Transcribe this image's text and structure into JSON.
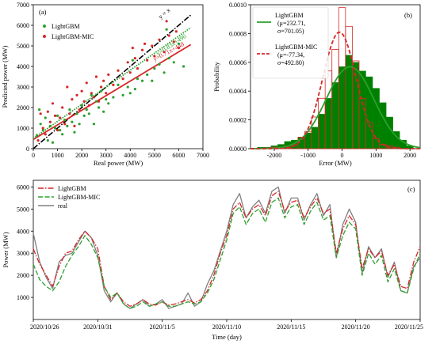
{
  "chart_data": [
    {
      "id": "a",
      "type": "scatter",
      "panel_label": "(a)",
      "xlabel": "Real power (MW)",
      "ylabel": "Predicted power (MW)",
      "xlim": [
        0,
        7000
      ],
      "ylim": [
        0,
        7000
      ],
      "xticks": [
        0,
        1000,
        2000,
        3000,
        4000,
        5000,
        6000,
        7000
      ],
      "yticks": [
        0,
        1000,
        2000,
        3000,
        4000,
        5000,
        6000,
        7000
      ],
      "legend_position": "top-left",
      "grid": false,
      "series": [
        {
          "name": "LightGBM",
          "color": "#2ca02c",
          "points": [
            [
              150,
              650
            ],
            [
              250,
              1900
            ],
            [
              300,
              1200
            ],
            [
              400,
              900
            ],
            [
              500,
              1500
            ],
            [
              600,
              400
            ],
            [
              700,
              1100
            ],
            [
              800,
              300
            ],
            [
              900,
              1000
            ],
            [
              1000,
              1600
            ],
            [
              1100,
              900
            ],
            [
              1200,
              700
            ],
            [
              1300,
              1400
            ],
            [
              1400,
              1100
            ],
            [
              1500,
              1900
            ],
            [
              1600,
              1300
            ],
            [
              1700,
              800
            ],
            [
              1800,
              1700
            ],
            [
              1900,
              1200
            ],
            [
              2000,
              2100
            ],
            [
              2100,
              1600
            ],
            [
              2200,
              1900
            ],
            [
              2300,
              1700
            ],
            [
              2400,
              2600
            ],
            [
              2500,
              1200
            ],
            [
              2600,
              2300
            ],
            [
              2700,
              2000
            ],
            [
              2800,
              2800
            ],
            [
              2900,
              1800
            ],
            [
              3000,
              2400
            ],
            [
              3100,
              2200
            ],
            [
              3300,
              2500
            ],
            [
              3500,
              3100
            ],
            [
              3700,
              2600
            ],
            [
              3900,
              3000
            ],
            [
              4000,
              2700
            ],
            [
              4100,
              4300
            ],
            [
              4200,
              2900
            ],
            [
              4300,
              3400
            ],
            [
              4500,
              3300
            ],
            [
              4700,
              3600
            ],
            [
              4900,
              3300
            ],
            [
              5000,
              3900
            ],
            [
              5200,
              4100
            ],
            [
              5400,
              3700
            ],
            [
              5600,
              4400
            ],
            [
              5800,
              4200
            ],
            [
              6000,
              5100
            ],
            [
              6200,
              4000
            ],
            [
              5500,
              5800
            ]
          ]
        },
        {
          "name": "LightGBM-MIC",
          "color": "#d62728",
          "points": [
            [
              200,
              400
            ],
            [
              300,
              1700
            ],
            [
              400,
              1000
            ],
            [
              500,
              700
            ],
            [
              600,
              1800
            ],
            [
              700,
              1300
            ],
            [
              800,
              2200
            ],
            [
              900,
              1600
            ],
            [
              1000,
              900
            ],
            [
              1100,
              1500
            ],
            [
              1200,
              2000
            ],
            [
              1300,
              1200
            ],
            [
              1400,
              3000
            ],
            [
              1500,
              1700
            ],
            [
              1600,
              2400
            ],
            [
              1700,
              1100
            ],
            [
              1800,
              2600
            ],
            [
              1900,
              1900
            ],
            [
              2000,
              2800
            ],
            [
              2100,
              2300
            ],
            [
              2200,
              3200
            ],
            [
              2300,
              2100
            ],
            [
              2400,
              2700
            ],
            [
              2500,
              2500
            ],
            [
              2600,
              3500
            ],
            [
              2700,
              2300
            ],
            [
              2800,
              3000
            ],
            [
              2900,
              3300
            ],
            [
              3000,
              2700
            ],
            [
              3100,
              3600
            ],
            [
              3300,
              3100
            ],
            [
              3500,
              3800
            ],
            [
              3700,
              3400
            ],
            [
              3900,
              4200
            ],
            [
              4000,
              3700
            ],
            [
              4100,
              4900
            ],
            [
              4200,
              4400
            ],
            [
              4300,
              3900
            ],
            [
              4500,
              4800
            ],
            [
              4700,
              4300
            ],
            [
              4900,
              5000
            ],
            [
              5000,
              4500
            ],
            [
              5200,
              5300
            ],
            [
              5400,
              4700
            ],
            [
              5600,
              5500
            ],
            [
              5800,
              5200
            ],
            [
              5900,
              5700
            ],
            [
              6000,
              4900
            ],
            [
              5500,
              6200
            ],
            [
              4600,
              5100
            ]
          ]
        }
      ],
      "reference_line_label": "y = x",
      "fit_lines": [
        {
          "series": "LightGBM-MIC",
          "equation": "y=0.71x+448",
          "slope": 0.71,
          "intercept": 448,
          "color": "#d62728"
        },
        {
          "series": "LightGBM",
          "equation": "y=0.83x+496",
          "slope": 0.83,
          "intercept": 496,
          "color": "#2ca02c"
        }
      ]
    },
    {
      "id": "b",
      "type": "histogram",
      "panel_label": "(b)",
      "xlabel": "Error (MW)",
      "ylabel": "Probability",
      "xlim": [
        -2700,
        2300
      ],
      "ylim": [
        0,
        0.001
      ],
      "xticks": [
        -2000,
        -1000,
        0,
        1000,
        2000
      ],
      "yticks": [
        0,
        0.0002,
        0.0004,
        0.0006,
        0.0008,
        0.001
      ],
      "ytick_labels": [
        "0.0000",
        "0.0002",
        "0.0004",
        "0.0006",
        "0.0008",
        "0.0010"
      ],
      "legend_position": "top-left",
      "grid": false,
      "bin_edges": [
        -2500,
        -2300,
        -2100,
        -1900,
        -1700,
        -1500,
        -1300,
        -1100,
        -900,
        -700,
        -500,
        -300,
        -100,
        100,
        300,
        500,
        700,
        900,
        1100,
        1300,
        1500,
        1700,
        1900,
        2100
      ],
      "series": [
        {
          "name": "LightGBM",
          "stats_lines": [
            "(μ=232.71,",
            "σ=701.05)"
          ],
          "mu": 232.71,
          "sigma": 701.05,
          "color": "#008000",
          "style": "filled",
          "values": [
            1e-05,
            1e-05,
            2e-05,
            3e-05,
            5e-05,
            6e-05,
            8e-05,
            0.00011,
            0.00015,
            0.00024,
            0.00035,
            0.00046,
            0.00057,
            0.00065,
            0.0006,
            0.00054,
            0.0005,
            0.00042,
            0.00032,
            0.00022,
            0.00012,
            6e-05,
            2e-05
          ]
        },
        {
          "name": "LightGBM-MIC",
          "stats_lines": [
            "(μ=-77.34,",
            "σ=492.80)"
          ],
          "mu": -77.34,
          "sigma": 492.8,
          "color": "#d62728",
          "style": "outline",
          "values": [
            0,
            5e-06,
            1e-05,
            1e-05,
            2e-05,
            3e-05,
            8e-05,
            0.00012,
            0.00022,
            0.00035,
            0.00054,
            0.00069,
            0.00098,
            0.00085,
            0.00061,
            0.00035,
            0.00018,
            7e-05,
            3e-05,
            2e-05,
            1e-05,
            0,
            0
          ]
        }
      ]
    },
    {
      "id": "c",
      "type": "line",
      "panel_label": "(c)",
      "xlabel": "Time (day)",
      "ylabel": "Power (MW)",
      "xlim": [
        0,
        30
      ],
      "ylim": [
        0,
        6300
      ],
      "xtick_labels": [
        "2020/10/26",
        "2020/10/31",
        "2020/11/5",
        "2020/11/10",
        "2020/11/15",
        "2020/11/20",
        "2020/11/25"
      ],
      "xtick_days": [
        0,
        5,
        10,
        15,
        20,
        25,
        30
      ],
      "yticks": [
        1000,
        2000,
        3000,
        4000,
        5000,
        6000
      ],
      "legend_position": "top-left",
      "grid": false,
      "x_days": [
        0,
        0.5,
        1,
        1.5,
        2,
        2.5,
        3,
        3.5,
        4,
        4.5,
        5,
        5.5,
        6,
        6.5,
        7,
        7.5,
        8,
        8.5,
        9,
        9.5,
        10,
        10.5,
        11,
        11.5,
        12,
        12.5,
        13,
        13.5,
        14,
        14.5,
        15,
        15.5,
        16,
        16.5,
        17,
        17.5,
        18,
        18.5,
        19,
        19.5,
        20,
        20.5,
        21,
        21.5,
        22,
        22.5,
        23,
        23.5,
        24,
        24.5,
        25,
        25.5,
        26,
        26.5,
        27,
        27.5,
        28,
        28.5,
        29,
        29.5,
        30
      ],
      "series": [
        {
          "name": "LightGBM",
          "color": "#d62728",
          "dash": "7,2,1.5,2",
          "values": [
            3200,
            2500,
            2000,
            1500,
            2400,
            3000,
            3100,
            3600,
            4000,
            3700,
            3200,
            1500,
            900,
            1200,
            800,
            600,
            700,
            900,
            700,
            650,
            800,
            650,
            700,
            800,
            900,
            750,
            900,
            1300,
            2000,
            3000,
            3800,
            5000,
            5300,
            4600,
            5000,
            5200,
            4700,
            5600,
            5800,
            4900,
            5300,
            5400,
            4600,
            5100,
            5500,
            4800,
            5000,
            3000,
            4100,
            4700,
            4300,
            2300,
            3200,
            2800,
            3100,
            2000,
            2500,
            1500,
            1400,
            2600,
            3300
          ]
        },
        {
          "name": "LightGBM-MIC",
          "color": "#2ca02c",
          "dash": "6,2.5",
          "values": [
            2500,
            1800,
            1500,
            1300,
            1700,
            2400,
            2900,
            3300,
            3800,
            3400,
            2800,
            1500,
            1000,
            1200,
            700,
            500,
            600,
            800,
            600,
            700,
            800,
            600,
            600,
            700,
            800,
            700,
            800,
            1200,
            1800,
            2700,
            3600,
            4800,
            5100,
            4300,
            4800,
            5000,
            4400,
            5300,
            5500,
            4600,
            5100,
            5200,
            4300,
            4900,
            5300,
            4500,
            4700,
            2800,
            3800,
            4400,
            4100,
            2000,
            3000,
            2500,
            2900,
            1700,
            2300,
            1300,
            1200,
            2300,
            3000
          ]
        },
        {
          "name": "real",
          "color": "#808080",
          "dash": "",
          "values": [
            3900,
            2600,
            1900,
            1400,
            2600,
            2900,
            3000,
            3500,
            4000,
            3700,
            2900,
            1300,
            800,
            1200,
            700,
            500,
            700,
            900,
            600,
            700,
            900,
            500,
            600,
            700,
            1200,
            600,
            800,
            1600,
            2200,
            3100,
            4000,
            5200,
            5700,
            4600,
            5100,
            5400,
            4800,
            5800,
            6000,
            4800,
            5500,
            5500,
            4500,
            5200,
            5700,
            4700,
            5200,
            2800,
            4300,
            5000,
            4400,
            2100,
            3300,
            2800,
            3200,
            1900,
            2600,
            1300,
            1200,
            2400,
            2800
          ]
        }
      ]
    }
  ]
}
